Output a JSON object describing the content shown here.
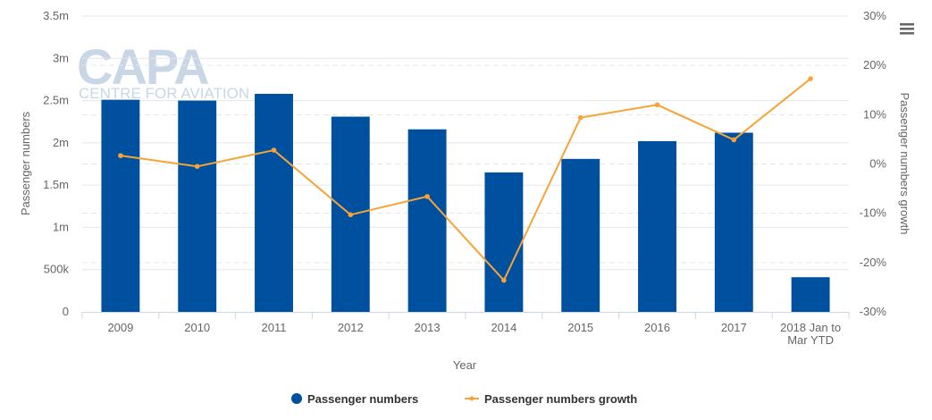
{
  "watermark": {
    "brand": "CAPA",
    "tagline": "CENTRE FOR AVIATION"
  },
  "menu_icon": "hamburger-menu-icon",
  "colors": {
    "bars": "#0050a0",
    "line": "#f7a336",
    "grid": "#e6e6e6",
    "text": "#666666"
  },
  "chart_data": {
    "type": "bar+line",
    "xlabel": "Year",
    "ylabel_left": "Passenger numbers",
    "ylabel_right": "Passenger numbers growth",
    "categories": [
      [
        "2009"
      ],
      [
        "2010"
      ],
      [
        "2011"
      ],
      [
        "2012"
      ],
      [
        "2013"
      ],
      [
        "2014"
      ],
      [
        "2015"
      ],
      [
        "2016"
      ],
      [
        "2017"
      ],
      [
        "2018 Jan to",
        "Mar YTD"
      ]
    ],
    "left_ticks": [
      "0",
      "500k",
      "1m",
      "1.5m",
      "2m",
      "2.5m",
      "3m",
      "3.5m"
    ],
    "right_ticks": [
      "-30%",
      "-20%",
      "-10%",
      "0%",
      "10%",
      "20%",
      "30%"
    ],
    "ylim_left": [
      0,
      3500000
    ],
    "ylim_right": [
      -30,
      30
    ],
    "grid": true,
    "legend_position": "bottom",
    "series": [
      {
        "name": "Passenger numbers",
        "type": "bar",
        "axis": "left",
        "values": [
          2510000,
          2500000,
          2580000,
          2310000,
          2160000,
          1650000,
          1810000,
          2020000,
          2120000,
          410000
        ]
      },
      {
        "name": "Passenger numbers growth",
        "type": "line",
        "axis": "right",
        "values": [
          1.7,
          -0.5,
          2.8,
          -10.3,
          -6.6,
          -23.6,
          9.4,
          12.0,
          4.9,
          17.3
        ]
      }
    ]
  }
}
